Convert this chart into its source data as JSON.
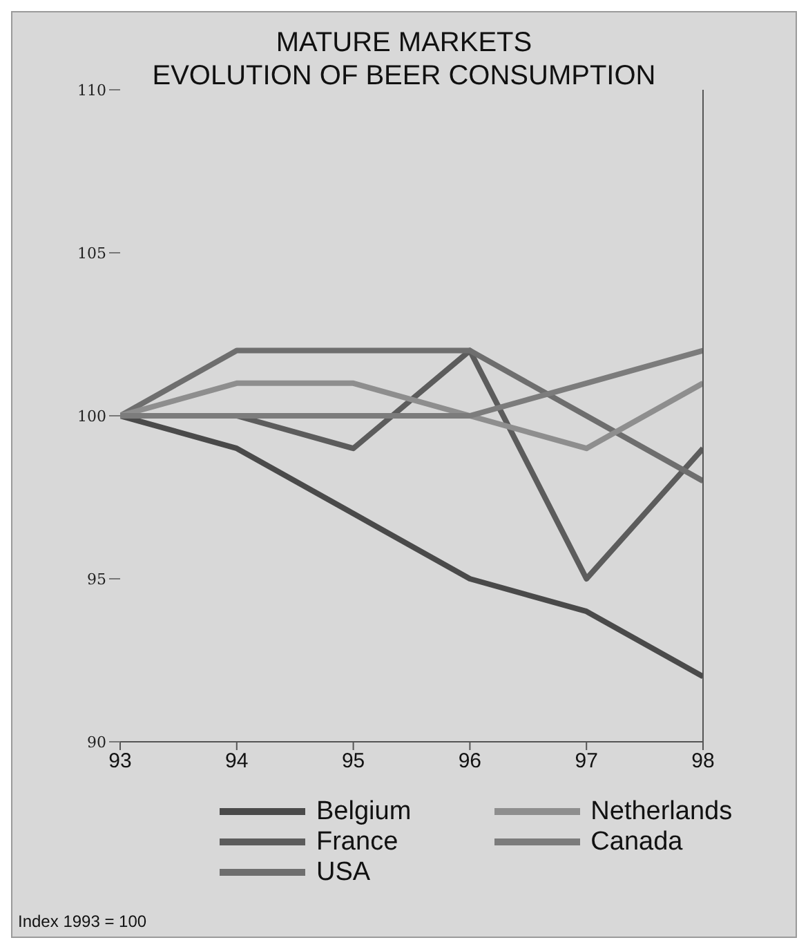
{
  "chart_data": {
    "type": "line",
    "title": "MATURE MARKETS",
    "subtitle": "EVOLUTION OF BEER CONSUMPTION",
    "x": [
      93,
      94,
      95,
      96,
      97,
      98
    ],
    "xlim": [
      93,
      98
    ],
    "xticks": [
      93,
      94,
      95,
      96,
      97,
      98
    ],
    "ylim": [
      90,
      110
    ],
    "yticks": [
      90,
      95,
      100,
      105,
      110
    ],
    "legend": "bottom",
    "marker": "none",
    "line_style": "solid",
    "annotations": [
      "Index 1993 = 100"
    ],
    "series": [
      {
        "name": "Belgium",
        "color": "#4a4a4a",
        "values": [
          100,
          99,
          97,
          95,
          94,
          92
        ]
      },
      {
        "name": "France",
        "color": "#5c5c5c",
        "values": [
          100,
          100,
          99,
          102,
          95,
          99
        ]
      },
      {
        "name": "USA",
        "color": "#6e6e6e",
        "values": [
          100,
          102,
          102,
          102,
          100,
          98
        ]
      },
      {
        "name": "Netherlands",
        "color": "#8e8e8e",
        "values": [
          100,
          101,
          101,
          100,
          99,
          101
        ]
      },
      {
        "name": "Canada",
        "color": "#7c7c7c",
        "values": [
          100,
          100,
          100,
          100,
          101,
          102
        ]
      }
    ]
  }
}
